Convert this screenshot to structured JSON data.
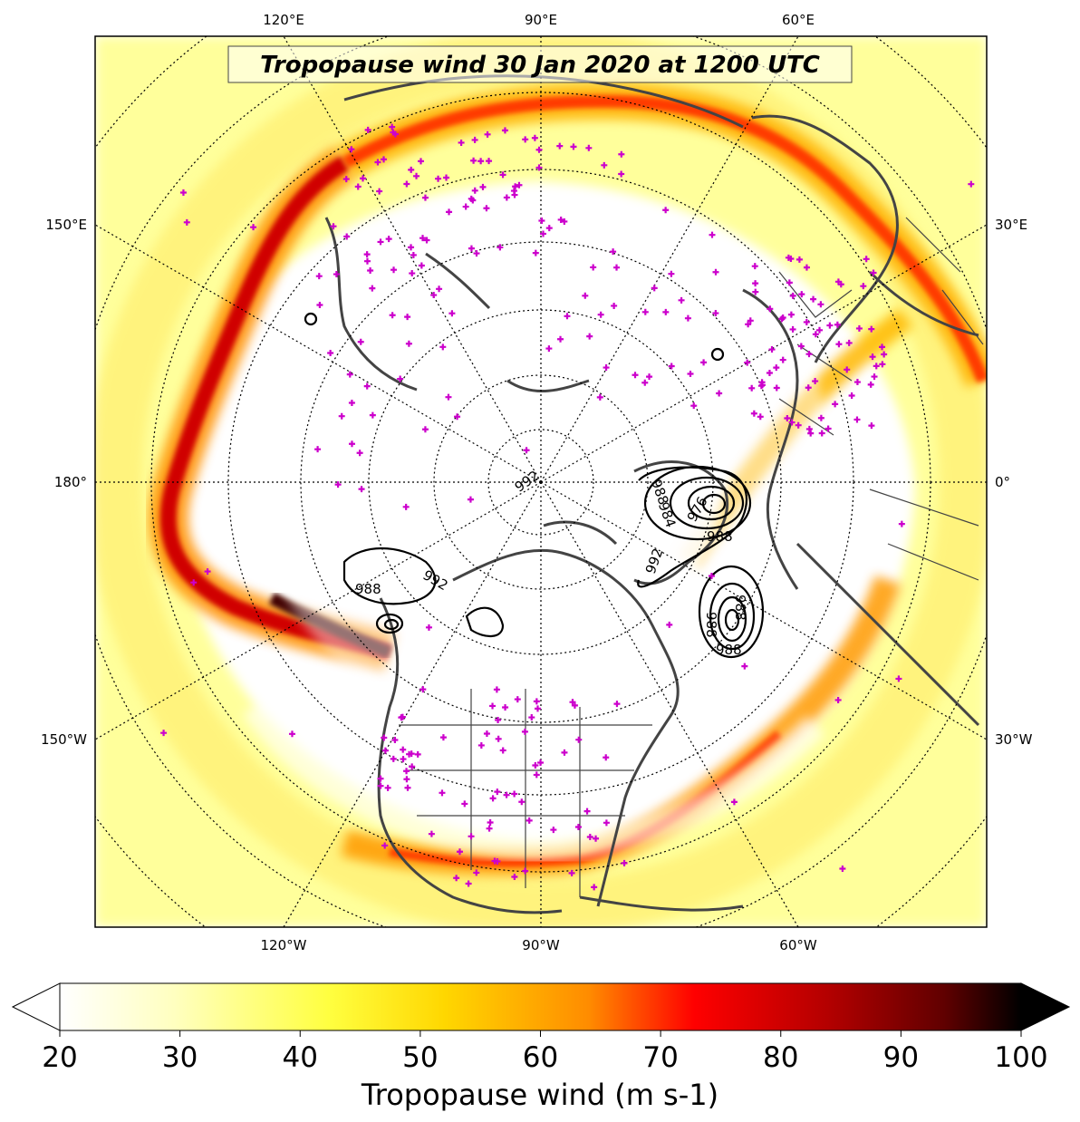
{
  "title": "Tropopause wind 30 Jan 2020 at 1200 UTC",
  "colorbar": {
    "label": "Tropopause wind (m s-1)",
    "ticks": [
      "20",
      "30",
      "40",
      "50",
      "60",
      "70",
      "80",
      "90",
      "100"
    ],
    "min": 20,
    "max": 100,
    "extend": "both",
    "colormap": "hot_r",
    "colors": [
      "#ffffff",
      "#ffffbf",
      "#ffff40",
      "#ffd700",
      "#ff8c00",
      "#ff0000",
      "#b30000",
      "#600000",
      "#000000"
    ]
  },
  "graticule_labels": {
    "top": [
      "120°E",
      "90°E",
      "60°E"
    ],
    "bottom": [
      "120°W",
      "90°W",
      "60°W"
    ],
    "left": [
      "150°E",
      "180°",
      "150°W"
    ],
    "right": [
      "30°E",
      "0°",
      "30°W"
    ]
  },
  "contour_labels": [
    "992",
    "988",
    "988",
    "988",
    "992",
    "988",
    "988",
    "976",
    "984",
    "992",
    "988"
  ],
  "map": {
    "projection": "north polar stereographic",
    "field": "tropopause wind speed (shaded)",
    "overlay_contours": "mean sea level pressure (hPa), black",
    "station_markers_color": "#cc00cc"
  }
}
